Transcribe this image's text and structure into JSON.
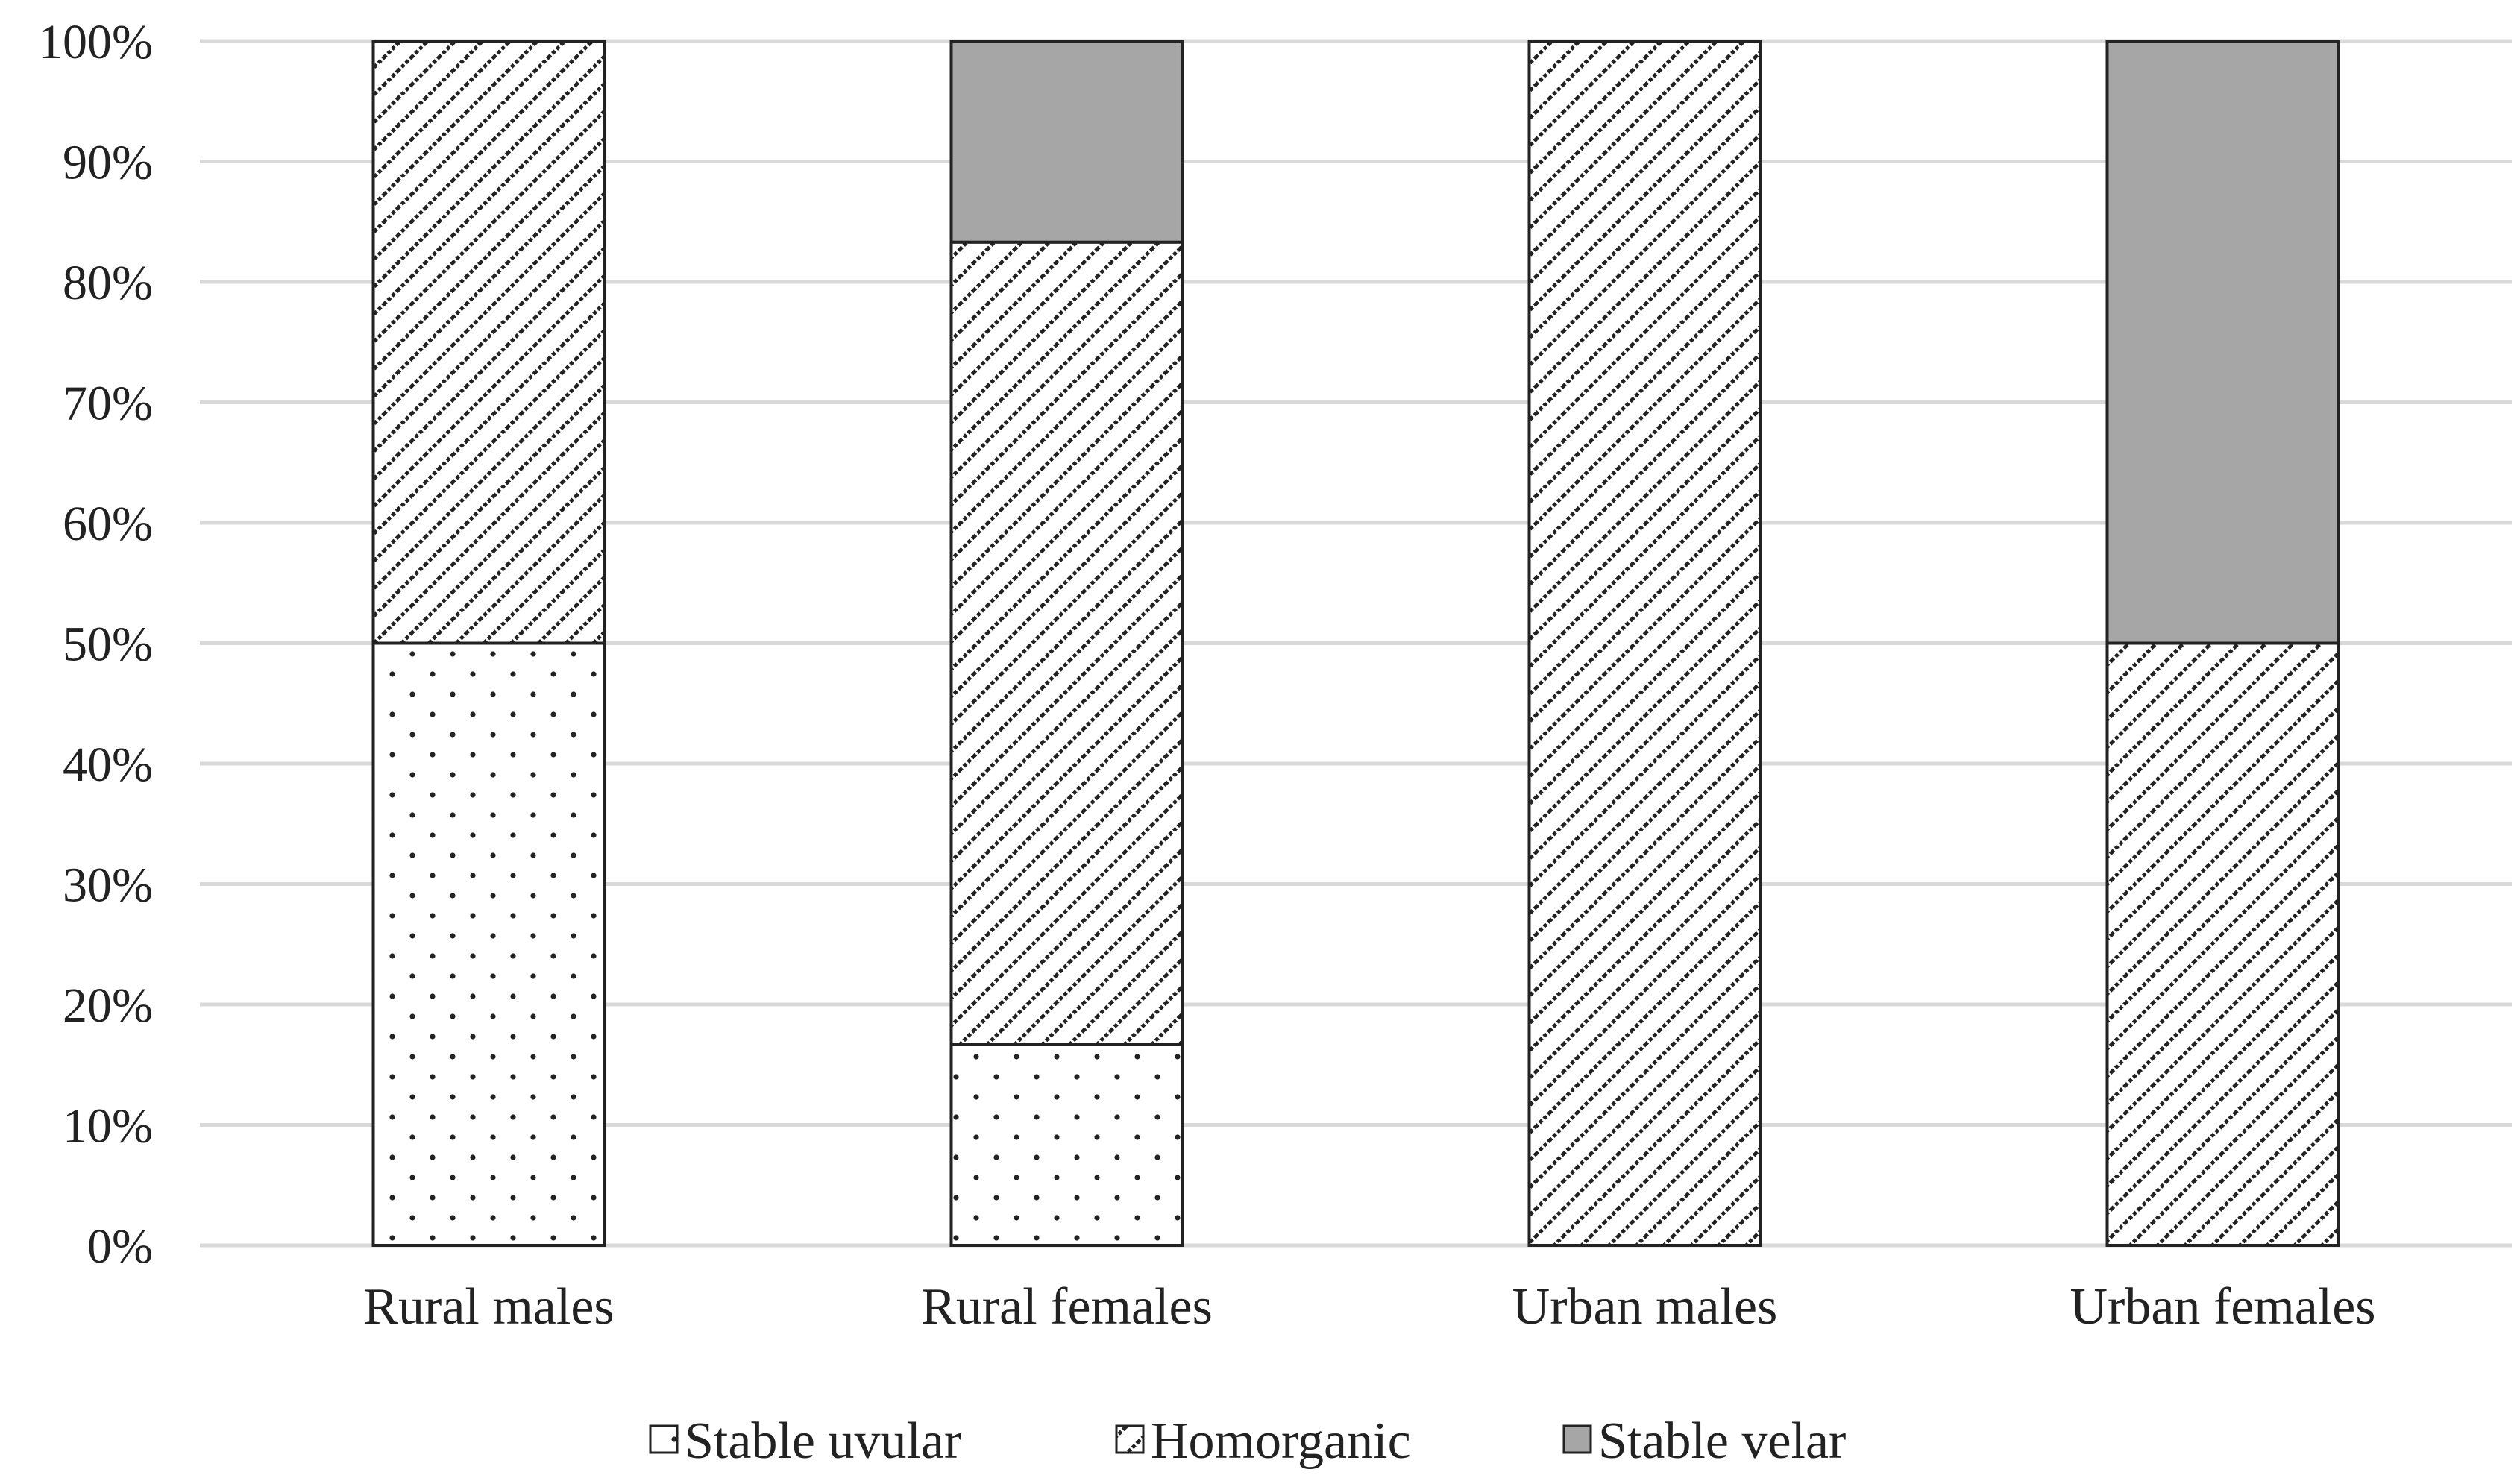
{
  "chart_data": {
    "type": "bar",
    "stacked": true,
    "categories": [
      "Rural males",
      "Rural females",
      "Urban males",
      "Urban females"
    ],
    "series": [
      {
        "name": "Stable uvular",
        "pattern": "dots",
        "values": [
          50,
          16.7,
          0,
          0
        ]
      },
      {
        "name": "Homorganic",
        "pattern": "diagonal-hatch",
        "values": [
          50,
          66.6,
          100,
          50
        ]
      },
      {
        "name": "Stable velar",
        "pattern": "solid-gray",
        "values": [
          0,
          16.7,
          0,
          50
        ]
      }
    ],
    "y_ticks": [
      "0%",
      "10%",
      "20%",
      "30%",
      "40%",
      "50%",
      "60%",
      "70%",
      "80%",
      "90%",
      "100%"
    ],
    "ylim": [
      0,
      100
    ],
    "title": "",
    "xlabel": "",
    "ylabel": "",
    "grid": true,
    "legend_position": "bottom",
    "colors": {
      "grid": "#d9d9d9",
      "bar_outline": "#222222",
      "stable_velar_fill": "#a6a6a6",
      "pattern_ink": "#222222"
    }
  }
}
